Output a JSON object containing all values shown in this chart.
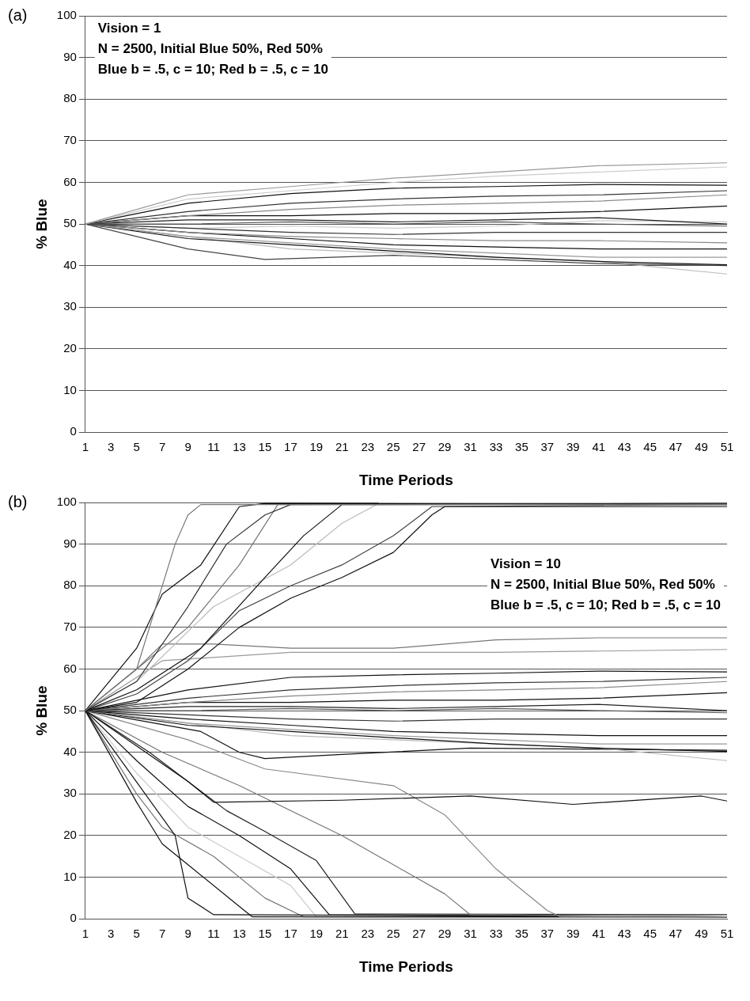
{
  "chart_data": [
    {
      "type": "line",
      "title": "(a)",
      "xlabel": "Time Periods",
      "ylabel": "% Blue",
      "annotations": [
        "Vision = 1",
        "N = 2500, Initial Blue 50%, Red 50%",
        "Blue b = .5, c = 10; Red b = .5, c = 10"
      ],
      "xlim": [
        1,
        51
      ],
      "xticks": [
        1,
        3,
        5,
        7,
        9,
        11,
        13,
        15,
        17,
        19,
        21,
        23,
        25,
        27,
        29,
        31,
        33,
        35,
        37,
        39,
        41,
        43,
        45,
        47,
        49,
        51
      ],
      "ylim": [
        0,
        100
      ],
      "yticks": [
        0,
        10,
        20,
        30,
        40,
        50,
        60,
        70,
        80,
        90,
        100
      ],
      "grid": "y",
      "legend": false,
      "marker": "none",
      "line_style": "solid",
      "series": [
        {
          "color": "#999999",
          "x": [
            1,
            9,
            17,
            25,
            33,
            41,
            51
          ],
          "values": [
            50,
            57,
            59,
            61,
            62.5,
            64,
            64.7
          ]
        },
        {
          "color": "#cccccc",
          "x": [
            1,
            9,
            17,
            25,
            33,
            41,
            51
          ],
          "values": [
            50,
            56,
            58,
            60,
            61.5,
            62.5,
            63.7
          ]
        },
        {
          "color": "#111111",
          "x": [
            1,
            9,
            17,
            25,
            33,
            41,
            51
          ],
          "values": [
            50,
            55,
            57.3,
            58.6,
            59,
            59.5,
            59.3
          ]
        },
        {
          "color": "#333333",
          "x": [
            1,
            9,
            17,
            25,
            33,
            41,
            51
          ],
          "values": [
            50,
            53,
            55,
            56,
            56.7,
            57,
            58
          ]
        },
        {
          "color": "#888888",
          "x": [
            1,
            9,
            17,
            25,
            33,
            41,
            51
          ],
          "values": [
            50,
            52,
            53.5,
            54.5,
            55,
            55.5,
            57
          ]
        },
        {
          "color": "#111111",
          "x": [
            1,
            9,
            17,
            25,
            33,
            41,
            51
          ],
          "values": [
            50,
            52,
            52,
            52.5,
            52.5,
            53,
            54.3
          ]
        },
        {
          "color": "#222222",
          "x": [
            1,
            9,
            17,
            25,
            33,
            41,
            51
          ],
          "values": [
            50,
            51,
            51,
            50.5,
            51,
            51.5,
            50
          ]
        },
        {
          "color": "#555555",
          "x": [
            1,
            9,
            17,
            25,
            33,
            41,
            51
          ],
          "values": [
            50,
            50,
            50.5,
            50,
            50.5,
            50,
            49.5
          ]
        },
        {
          "color": "#333333",
          "x": [
            1,
            9,
            17,
            25,
            33,
            41,
            51
          ],
          "values": [
            50,
            49,
            48,
            47.5,
            48,
            48,
            48
          ]
        },
        {
          "color": "#888888",
          "x": [
            1,
            9,
            17,
            25,
            33,
            41,
            51
          ],
          "values": [
            50,
            48,
            47,
            46.5,
            46,
            46,
            45.5
          ]
        },
        {
          "color": "#111111",
          "x": [
            1,
            9,
            17,
            25,
            33,
            41,
            51
          ],
          "values": [
            50,
            48,
            46.5,
            45,
            44.5,
            44,
            44
          ]
        },
        {
          "color": "#999999",
          "x": [
            1,
            9,
            17,
            25,
            33,
            41,
            51
          ],
          "values": [
            50,
            47,
            45.5,
            44,
            43,
            42,
            42
          ]
        },
        {
          "color": "#111111",
          "x": [
            1,
            9,
            17,
            25,
            33,
            41,
            51
          ],
          "values": [
            50,
            46.5,
            45,
            43.5,
            42,
            41,
            40.2
          ]
        },
        {
          "color": "#444444",
          "x": [
            1,
            9,
            15,
            25,
            33,
            41,
            51
          ],
          "values": [
            50,
            44,
            41.5,
            42.5,
            41.5,
            40.5,
            40
          ]
        },
        {
          "color": "#bbbbbb",
          "x": [
            1,
            9,
            17,
            25,
            33,
            41,
            51
          ],
          "values": [
            50,
            47,
            44,
            43,
            42,
            41,
            38
          ]
        },
        {
          "color": "#cccccc",
          "x": [
            1,
            9,
            17,
            25,
            33,
            41,
            51
          ],
          "values": [
            50,
            49,
            49.5,
            49,
            49.5,
            50.8,
            50.5
          ]
        }
      ]
    },
    {
      "type": "line",
      "title": "(b)",
      "xlabel": "Time Periods",
      "ylabel": "% Blue",
      "annotations": [
        "Vision = 10",
        "N = 2500, Initial Blue 50%, Red 50%",
        "Blue b = .5, c = 10; Red b = .5, c = 10"
      ],
      "xlim": [
        1,
        51
      ],
      "xticks": [
        1,
        3,
        5,
        7,
        9,
        11,
        13,
        15,
        17,
        19,
        21,
        23,
        25,
        27,
        29,
        31,
        33,
        35,
        37,
        39,
        41,
        43,
        45,
        47,
        49,
        51
      ],
      "ylim": [
        0,
        100
      ],
      "yticks": [
        0,
        10,
        20,
        30,
        40,
        50,
        60,
        70,
        80,
        90,
        100
      ],
      "grid": "y",
      "legend": false,
      "marker": "none",
      "line_style": "solid",
      "series": [
        {
          "color": "#777777",
          "x": [
            1,
            5,
            8,
            9,
            10,
            51
          ],
          "values": [
            50,
            60,
            90,
            97,
            99.5,
            99.5
          ]
        },
        {
          "color": "#111111",
          "x": [
            1,
            5,
            7,
            10,
            13,
            15,
            51
          ],
          "values": [
            50,
            65,
            78,
            85,
            99,
            99.8,
            99.5
          ]
        },
        {
          "color": "#333333",
          "x": [
            1,
            5,
            9,
            12,
            15,
            17,
            51
          ],
          "values": [
            50,
            57,
            75,
            90,
            97,
            99.5,
            99.8
          ]
        },
        {
          "color": "#777777",
          "x": [
            1,
            5,
            9,
            13,
            16,
            51
          ],
          "values": [
            50,
            60,
            70,
            85,
            99.5,
            99.6
          ]
        },
        {
          "color": "#111111",
          "x": [
            1,
            5,
            10,
            15,
            18,
            21,
            51
          ],
          "values": [
            50,
            55,
            65,
            82,
            92,
            99.5,
            99.6
          ]
        },
        {
          "color": "#bbbbbb",
          "x": [
            1,
            5,
            11,
            17,
            21,
            24,
            51
          ],
          "values": [
            50,
            57,
            75,
            85,
            95,
            100,
            99.8
          ]
        },
        {
          "color": "#111111",
          "x": [
            1,
            5,
            9,
            13,
            17,
            21,
            25,
            28,
            29,
            51
          ],
          "values": [
            50,
            52,
            60,
            70,
            77,
            82,
            88,
            97,
            99,
            99
          ]
        },
        {
          "color": "#444444",
          "x": [
            1,
            5,
            9,
            13,
            17,
            21,
            25,
            28,
            51
          ],
          "values": [
            50,
            54,
            62,
            74,
            80,
            85,
            92,
            99,
            99.5
          ]
        },
        {
          "color": "#777777",
          "x": [
            1,
            5,
            7,
            11,
            17,
            25,
            33,
            41,
            51
          ],
          "values": [
            50,
            60,
            66,
            66,
            65,
            65,
            67,
            67.5,
            67.5
          ]
        },
        {
          "color": "#999999",
          "x": [
            1,
            7,
            17,
            33,
            51
          ],
          "values": [
            50,
            62,
            64,
            64,
            64.7
          ]
        },
        {
          "color": "#111111",
          "x": [
            1,
            9,
            17,
            25,
            33,
            41,
            51
          ],
          "values": [
            50,
            55,
            58,
            58.6,
            59,
            59.5,
            59.3
          ]
        },
        {
          "color": "#333333",
          "x": [
            1,
            9,
            17,
            25,
            33,
            41,
            51
          ],
          "values": [
            50,
            53,
            55,
            56,
            56.7,
            57,
            58
          ]
        },
        {
          "color": "#888888",
          "x": [
            1,
            9,
            17,
            25,
            33,
            41,
            51
          ],
          "values": [
            50,
            52,
            53.5,
            54.5,
            55,
            55.5,
            57
          ]
        },
        {
          "color": "#111111",
          "x": [
            1,
            9,
            17,
            25,
            33,
            41,
            51
          ],
          "values": [
            50,
            52,
            52,
            52.5,
            52.5,
            53,
            54.3
          ]
        },
        {
          "color": "#222222",
          "x": [
            1,
            9,
            17,
            25,
            33,
            41,
            51
          ],
          "values": [
            50,
            51,
            51,
            50.5,
            51,
            51.5,
            50
          ]
        },
        {
          "color": "#555555",
          "x": [
            1,
            9,
            17,
            25,
            33,
            41,
            51
          ],
          "values": [
            50,
            50,
            50.5,
            50,
            50.5,
            50,
            49.5
          ]
        },
        {
          "color": "#333333",
          "x": [
            1,
            9,
            17,
            25,
            33,
            41,
            51
          ],
          "values": [
            50,
            49,
            48,
            47.5,
            48,
            48,
            48
          ]
        },
        {
          "color": "#111111",
          "x": [
            1,
            9,
            17,
            25,
            33,
            41,
            51
          ],
          "values": [
            50,
            48,
            46.5,
            45,
            44.5,
            44,
            44
          ]
        },
        {
          "color": "#999999",
          "x": [
            1,
            9,
            17,
            25,
            33,
            41,
            51
          ],
          "values": [
            50,
            47,
            45.5,
            44,
            43,
            42,
            42
          ]
        },
        {
          "color": "#111111",
          "x": [
            1,
            9,
            17,
            25,
            33,
            41,
            51
          ],
          "values": [
            50,
            46.5,
            45,
            43.5,
            42,
            41,
            40.2
          ]
        },
        {
          "color": "#bbbbbb",
          "x": [
            1,
            9,
            17,
            25,
            33,
            41,
            51
          ],
          "values": [
            50,
            47,
            44,
            43,
            42,
            41,
            38
          ]
        },
        {
          "color": "#111111",
          "x": [
            1,
            10,
            13,
            15,
            21,
            31,
            51
          ],
          "values": [
            50,
            45,
            40,
            38.5,
            39.5,
            41,
            40.5
          ]
        },
        {
          "color": "#111111",
          "x": [
            1,
            9,
            11,
            21,
            31,
            39,
            49,
            51
          ],
          "values": [
            50,
            33,
            28,
            28.5,
            29.5,
            27.5,
            29.5,
            28.3
          ]
        },
        {
          "color": "#777777",
          "x": [
            1,
            7,
            13,
            21,
            25,
            29,
            31,
            51
          ],
          "values": [
            50,
            40,
            32,
            20,
            13,
            6,
            1,
            0.5
          ]
        },
        {
          "color": "#888888",
          "x": [
            1,
            9,
            15,
            25,
            29,
            33,
            37,
            38,
            51
          ],
          "values": [
            50,
            43,
            36,
            32,
            25,
            12,
            2,
            0.5,
            0.5
          ]
        },
        {
          "color": "#111111",
          "x": [
            1,
            8,
            9,
            11,
            51
          ],
          "values": [
            50,
            20,
            5,
            1,
            0.5
          ]
        },
        {
          "color": "#111111",
          "x": [
            1,
            5,
            7,
            9,
            13,
            14,
            51
          ],
          "values": [
            50,
            28,
            18,
            13,
            3,
            0.5,
            0.5
          ]
        },
        {
          "color": "#777777",
          "x": [
            1,
            5,
            7,
            11,
            15,
            18,
            51
          ],
          "values": [
            50,
            30,
            22,
            15,
            5,
            0.5,
            0.5
          ]
        },
        {
          "color": "#111111",
          "x": [
            1,
            5,
            9,
            13,
            17,
            20,
            51
          ],
          "values": [
            50,
            38,
            27,
            20,
            12,
            1,
            0.5
          ]
        },
        {
          "color": "#cccccc",
          "x": [
            1,
            5,
            9,
            13,
            17,
            19,
            51
          ],
          "values": [
            50,
            35,
            22,
            15,
            8,
            0.5,
            0.3
          ]
        },
        {
          "color": "#222222",
          "x": [
            1,
            6,
            12,
            15,
            19,
            22,
            51
          ],
          "values": [
            50,
            40,
            26,
            21,
            14,
            1.2,
            1
          ]
        }
      ]
    }
  ]
}
